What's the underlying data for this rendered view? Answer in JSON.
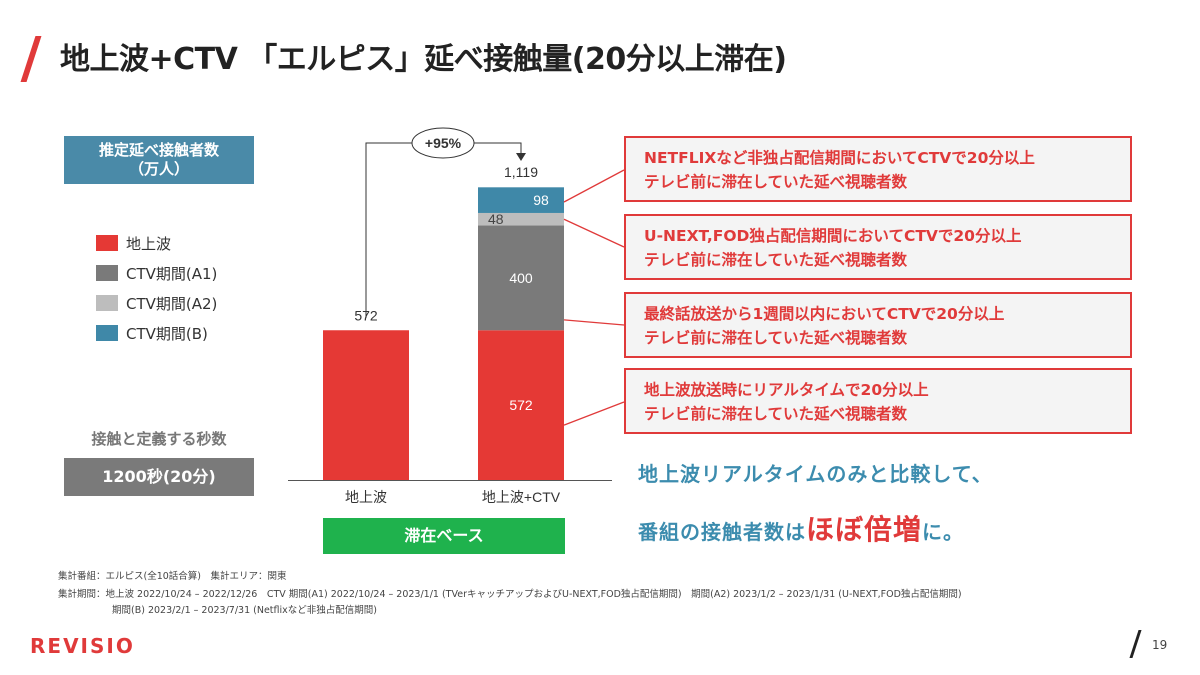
{
  "title": "地上波+CTV 「エルピス」延べ接触量(20分以上滞在)",
  "left_panel": {
    "estimate_label_line1": "推定延べ接触者数",
    "estimate_label_line2": "（万人）",
    "legend": [
      {
        "label": "地上波",
        "color": "#e53935"
      },
      {
        "label": "CTV期間(A1)",
        "color": "#7a7a7a"
      },
      {
        "label": "CTV期間(A2)",
        "color": "#bdbdbd"
      },
      {
        "label": "CTV期間(B)",
        "color": "#3f88a8"
      }
    ],
    "definition_label": "接触と定義する秒数",
    "definition_value": "1200秒(20分)"
  },
  "chart_data": {
    "type": "bar",
    "stacked": true,
    "categories": [
      "地上波",
      "地上波+CTV"
    ],
    "series": [
      {
        "name": "地上波",
        "color": "#e53935",
        "values": [
          572,
          572
        ]
      },
      {
        "name": "CTV期間(A1)",
        "color": "#7a7a7a",
        "values": [
          0,
          400
        ]
      },
      {
        "name": "CTV期間(A2)",
        "color": "#bdbdbd",
        "values": [
          0,
          48
        ]
      },
      {
        "name": "CTV期間(B)",
        "color": "#3f88a8",
        "values": [
          0,
          98
        ]
      }
    ],
    "totals": [
      572,
      1119
    ],
    "total_labels": [
      "572",
      "1,119"
    ],
    "growth_label": "+95%",
    "ylim": [
      0,
      1200
    ],
    "grid": false
  },
  "base_label": "滞在ベース",
  "annotations": [
    {
      "line1": "NETFLIXなど非独占配信期間においてCTVで20分以上",
      "line2": "テレビ前に滞在していた延べ視聴者数"
    },
    {
      "line1": "U-NEXT,FOD独占配信期間においてCTVで20分以上",
      "line2": "テレビ前に滞在していた延べ視聴者数"
    },
    {
      "line1": "最終話放送から1週間以内においてCTVで20分以上",
      "line2": "テレビ前に滞在していた延べ視聴者数"
    },
    {
      "line1": "地上波放送時にリアルタイムで20分以上",
      "line2": "テレビ前に滞在していた延べ視聴者数"
    }
  ],
  "summary": {
    "line1": "地上波リアルタイムのみと比較して、",
    "line2_pre": "番組の接触者数は",
    "line2_emph": "ほぼ倍増",
    "line2_post": "に。"
  },
  "footnotes": {
    "line1": "集計番組：エルピス(全10話合算)　集計エリア：関東",
    "line2": "集計期間：地上波 2022/10/24 – 2022/12/26　CTV 期間(A1) 2022/10/24 – 2023/1/1 (TVerキャッチアップおよびU-NEXT,FOD独占配信期間)　期間(A2) 2023/1/2 – 2023/1/31 (U-NEXT,FOD独占配信期間)",
    "line3": "期間(B) 2023/2/1 – 2023/7/31 (Netflixなど非独占配信期間)"
  },
  "logo": "REVISIO",
  "page_number": "19"
}
